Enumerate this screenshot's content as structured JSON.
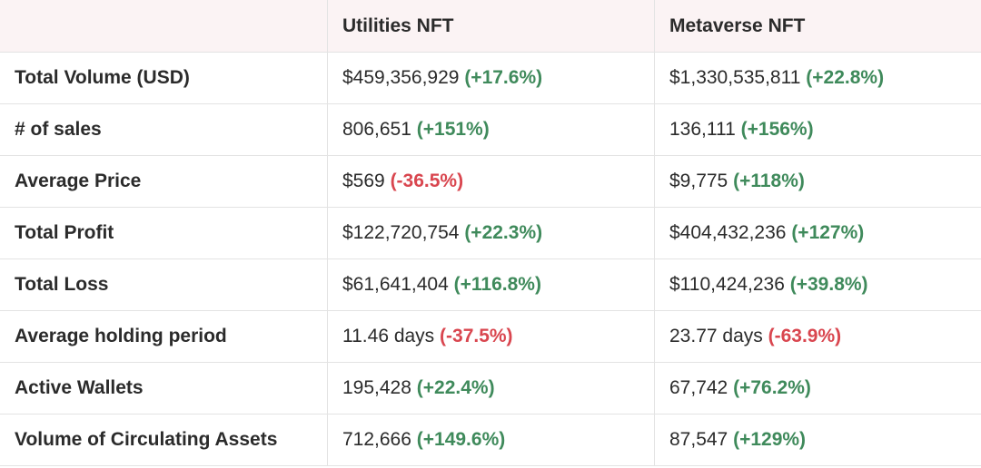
{
  "table": {
    "columns": [
      "Utilities NFT",
      "Metaverse NFT"
    ],
    "rows": [
      {
        "label": "Total Volume (USD)",
        "cells": [
          {
            "value": "$459,356,929",
            "change": "(+17.6%)"
          },
          {
            "value": "$1,330,535,811",
            "change": "(+22.8%)"
          }
        ]
      },
      {
        "label": "# of sales",
        "cells": [
          {
            "value": "806,651",
            "change": "(+151%)"
          },
          {
            "value": "136,111",
            "change": "(+156%)"
          }
        ]
      },
      {
        "label": "Average Price",
        "cells": [
          {
            "value": "$569",
            "change": "(-36.5%)"
          },
          {
            "value": "$9,775",
            "change": "(+118%)"
          }
        ]
      },
      {
        "label": "Total Profit",
        "cells": [
          {
            "value": "$122,720,754",
            "change": "(+22.3%)"
          },
          {
            "value": "$404,432,236",
            "change": "(+127%)"
          }
        ]
      },
      {
        "label": "Total Loss",
        "cells": [
          {
            "value": "$61,641,404",
            "change": "(+116.8%)"
          },
          {
            "value": "$110,424,236",
            "change": "(+39.8%)"
          }
        ]
      },
      {
        "label": "Average holding period",
        "cells": [
          {
            "value": "11.46 days",
            "change": "(-37.5%)"
          },
          {
            "value": "23.77 days",
            "change": "(-63.9%)"
          }
        ]
      },
      {
        "label": "Active Wallets",
        "cells": [
          {
            "value": "195,428",
            "change": "(+22.4%)"
          },
          {
            "value": "67,742",
            "change": "(+76.2%)"
          }
        ]
      },
      {
        "label": "Volume of Circulating Assets",
        "cells": [
          {
            "value": "712,666",
            "change": "(+149.6%)"
          },
          {
            "value": "87,547",
            "change": "(+129%)"
          }
        ]
      }
    ]
  }
}
